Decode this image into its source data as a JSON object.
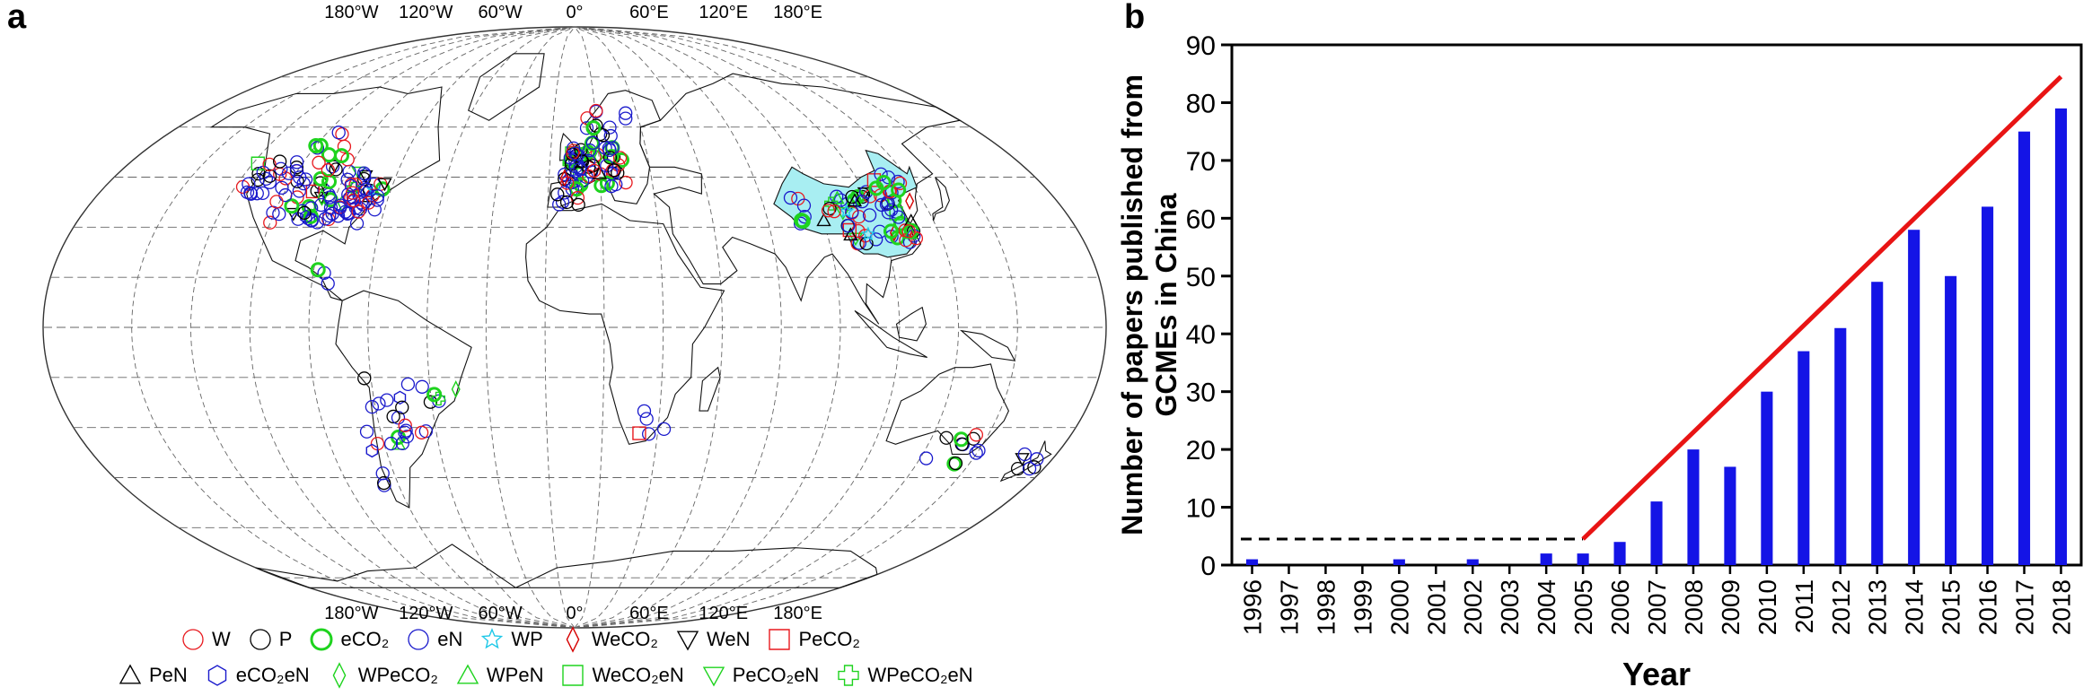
{
  "panel_a": {
    "letter": "a",
    "lon_labels_top": [
      "180°W",
      "120°W",
      "60°W",
      "0°",
      "60°E",
      "120°E",
      "180°E"
    ],
    "lon_labels_bottom": [
      "180°W",
      "120°W",
      "60°W",
      "0°",
      "60°E",
      "120°E",
      "180°E"
    ],
    "legend_row1": [
      {
        "symbol": "circle",
        "color": "#e8191e",
        "label": "W"
      },
      {
        "symbol": "circle",
        "color": "#000000",
        "label": "P"
      },
      {
        "symbol": "circle-thick",
        "color": "#1ed31e",
        "label": "eCO₂"
      },
      {
        "symbol": "circle",
        "color": "#1a1acc",
        "label": "eN"
      },
      {
        "symbol": "star",
        "color": "#1ec8e8",
        "label": "WP"
      },
      {
        "symbol": "diamond",
        "color": "#d60000",
        "label": "WeCO₂"
      },
      {
        "symbol": "triangle-down",
        "color": "#000000",
        "label": "WeN"
      },
      {
        "symbol": "square",
        "color": "#e8191e",
        "label": "PeCO₂"
      }
    ],
    "legend_row2": [
      {
        "symbol": "triangle",
        "color": "#000000",
        "label": "PeN"
      },
      {
        "symbol": "hexagon",
        "color": "#1a1acc",
        "label": "eCO₂eN"
      },
      {
        "symbol": "diamond",
        "color": "#1ed31e",
        "label": "WPeCO₂"
      },
      {
        "symbol": "triangle",
        "color": "#1ed31e",
        "label": "WPeN"
      },
      {
        "symbol": "square",
        "color": "#1ed31e",
        "label": "WeCO₂eN"
      },
      {
        "symbol": "triangle-down",
        "color": "#1ed31e",
        "label": "PeCO₂eN"
      },
      {
        "symbol": "cross",
        "color": "#1ed31e",
        "label": "WPeCO₂eN"
      }
    ]
  },
  "chart_data": {
    "type": "bar",
    "panel_letter": "b",
    "categories": [
      "1996",
      "1997",
      "1998",
      "1999",
      "2000",
      "2001",
      "2002",
      "2003",
      "2004",
      "2005",
      "2006",
      "2007",
      "2008",
      "2009",
      "2010",
      "2011",
      "2012",
      "2013",
      "2014",
      "2015",
      "2016",
      "2017",
      "2018"
    ],
    "values": [
      1,
      0,
      0,
      0,
      1,
      0,
      1,
      0,
      2,
      2,
      4,
      11,
      20,
      17,
      30,
      37,
      41,
      49,
      58,
      50,
      62,
      75,
      79
    ],
    "bar_color": "#1414e6",
    "xlabel": "Year",
    "ylabel_line1": "Number of papers published from",
    "ylabel_line2": "GCMEs in China",
    "ylim": [
      0,
      90
    ],
    "yticks": [
      0,
      10,
      20,
      30,
      40,
      50,
      60,
      70,
      80,
      90
    ],
    "trend_dashed": {
      "x": [
        "1996",
        "2005"
      ],
      "y": [
        4.5,
        4.5
      ],
      "color": "#000000"
    },
    "trend_solid": {
      "x": [
        "2005",
        "2018"
      ],
      "y": [
        4.5,
        84.5
      ],
      "color": "#e81414"
    },
    "grid": false
  }
}
